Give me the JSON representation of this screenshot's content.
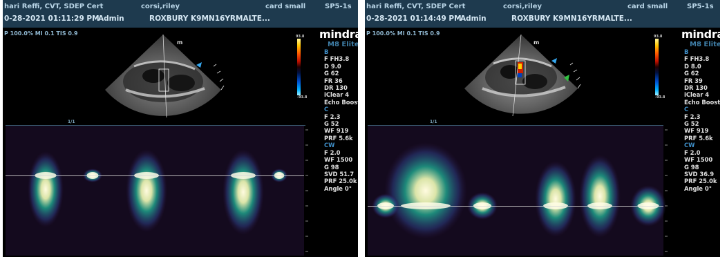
{
  "left": {
    "header_operator": "hari Reffi, CVT, SDEP Cert",
    "header_patient": "corsi,riley",
    "header_preset": "card small",
    "header_probe": "SP5-1s",
    "datetime": "0-28-2021 01:11:29 PM",
    "user": "Admin",
    "institution": "ROXBURY K9MN16YRMALTE...",
    "power_line": "P 100.0%  MI 0.1  TIS 0.9",
    "brand": "mindray",
    "model": "M8 Elite",
    "scale_max": "93.8",
    "scale_min": "-93.8",
    "b_head": "B",
    "b_params": [
      "F FH3.8",
      "D 9.0",
      "G 62",
      "FR 36",
      "DR 130",
      "iClear 4",
      "Echo Boost"
    ],
    "c_head": "C",
    "c_params": [
      "F 2.3",
      "G 52",
      "WF 919",
      "PRF 5.6k"
    ],
    "cw_head": "CW",
    "cw_params": [
      "F 2.0",
      "WF 1500",
      "G 98",
      "SVD 51.7",
      "PRF 25.0k",
      "Angle 0°"
    ],
    "page": "1/1"
  },
  "right": {
    "header_operator": "hari Reffi, CVT, SDEP Cert",
    "header_patient": "corsi,riley",
    "header_preset": "card small",
    "header_probe": "SP5-1s",
    "datetime": "0-28-2021 01:14:49 PM",
    "user": "Admin",
    "institution": "ROXBURY K9MN16YRMALTE...",
    "power_line": "P 100.0%  MI 0.1  TIS 0.9",
    "brand": "mindray",
    "model": "M8 Elite",
    "scale_max": "93.8",
    "scale_min": "-93.8",
    "b_head": "B",
    "b_params": [
      "F FH3.8",
      "D 8.0",
      "G 62",
      "FR 39",
      "DR 130",
      "iClear 4",
      "Echo Boost"
    ],
    "c_head": "C",
    "c_params": [
      "F 2.3",
      "G 52",
      "WF 919",
      "PRF 5.6k"
    ],
    "cw_head": "CW",
    "cw_params": [
      "F 2.0",
      "WF 1500",
      "G 98",
      "SVD 36.9",
      "PRF 25.0k",
      "Angle 0°"
    ],
    "page": "1/1"
  },
  "colors": {
    "header_bg": "#1e3a4e",
    "accent": "#3f8fc8",
    "doppler_mid": "#1fa08a"
  }
}
